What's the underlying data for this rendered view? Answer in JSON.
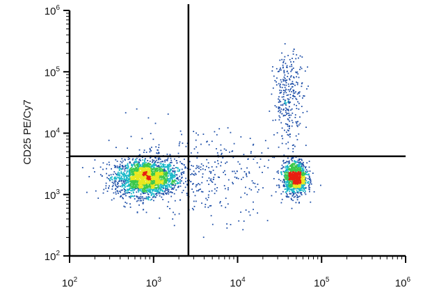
{
  "chart_data": {
    "type": "scatter",
    "title": "",
    "xlabel": "",
    "ylabel": "CD25 PE/Cy7",
    "xscale": "log",
    "yscale": "log",
    "xlim": [
      100,
      1000000
    ],
    "ylim": [
      100,
      1000000
    ],
    "grid": false,
    "legend": "none",
    "x_ticks": [
      {
        "base": "10",
        "exp": "2",
        "value": 100
      },
      {
        "base": "10",
        "exp": "3",
        "value": 1000
      },
      {
        "base": "10",
        "exp": "4",
        "value": 10000
      },
      {
        "base": "10",
        "exp": "5",
        "value": 100000
      },
      {
        "base": "10",
        "exp": "6",
        "value": 1000000
      }
    ],
    "y_ticks": [
      {
        "base": "10",
        "exp": "2",
        "value": 100
      },
      {
        "base": "10",
        "exp": "3",
        "value": 1000
      },
      {
        "base": "10",
        "exp": "4",
        "value": 10000
      },
      {
        "base": "10",
        "exp": "5",
        "value": 100000
      },
      {
        "base": "10",
        "exp": "6",
        "value": 1000000
      }
    ],
    "quadrant_gate": {
      "x": 2600,
      "y": 4200
    },
    "populations": [
      {
        "center": [
          800,
          1900
        ],
        "log_spread": [
          0.18,
          0.14
        ],
        "weight": 0.55
      },
      {
        "center": [
          48000,
          1900
        ],
        "log_spread": [
          0.07,
          0.13
        ],
        "weight": 0.28
      },
      {
        "center": [
          40000,
          40000
        ],
        "log_spread": [
          0.09,
          0.35
        ],
        "weight": 0.07
      },
      {
        "center": [
          3000,
          2200
        ],
        "log_spread": [
          0.55,
          0.35
        ],
        "weight": 0.1
      }
    ],
    "colors": {
      "low_density": "#1f4fa8",
      "mid_density": "#18b8c8",
      "mid_high_density": "#3cc84a",
      "high_density": "#e8e820",
      "peak_density": "#e82010",
      "gate_line": "#000000"
    }
  }
}
